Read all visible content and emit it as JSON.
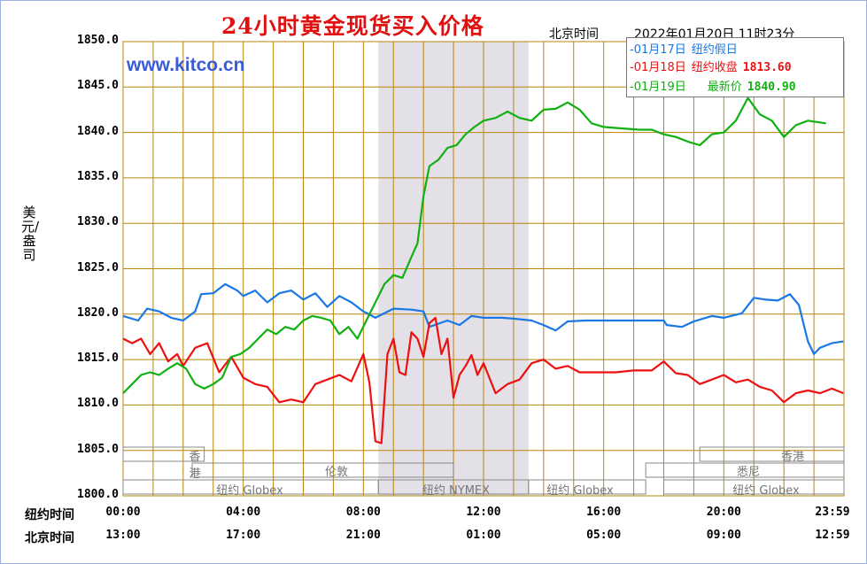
{
  "title": "24小时黄金现货买入价格",
  "header": {
    "beijing_time_label": "北京时间",
    "datetime": "2022年01月20日 11时23分"
  },
  "watermark": "www.kitco.cn",
  "y_axis_label": "美元/盎司",
  "x_axis": {
    "ny_label": "纽约时间",
    "bj_label": "北京时间",
    "ny_ticks": [
      "00:00",
      "04:00",
      "08:00",
      "12:00",
      "16:00",
      "20:00",
      "23:59"
    ],
    "bj_ticks": [
      "13:00",
      "17:00",
      "21:00",
      "01:00",
      "05:00",
      "09:00",
      "12:59"
    ]
  },
  "legend": {
    "items": [
      {
        "date": "-01月17日",
        "note": "纽约假日",
        "value": "",
        "color": "#1a78e6"
      },
      {
        "date": "-01月18日",
        "note": "纽约收盘",
        "value": "1813.60",
        "color": "#ee1010"
      },
      {
        "date": "-01月19日",
        "note": "最新价",
        "value": "1840.90",
        "color": "#10b010"
      }
    ]
  },
  "sessions": {
    "hongkong": [
      "香港",
      "香港"
    ],
    "london": "伦敦",
    "sydney": "悉尼",
    "ny_globex_1": "纽约 Globex",
    "ny_nymex": "纽约 NYMEX",
    "ny_globex_2": "纽约 Globex",
    "ny_globex_3": "纽约 Globex"
  },
  "colors": {
    "grid": "#b8860b",
    "shade": "#e4e0e8",
    "blue": "#1a78e6",
    "red": "#ee1010",
    "green": "#10b010"
  },
  "chart_data": {
    "type": "line",
    "ylim": [
      1800,
      1850
    ],
    "yticks": [
      "1850.0",
      "1845.0",
      "1840.0",
      "1835.0",
      "1830.0",
      "1825.0",
      "1820.0",
      "1815.0",
      "1810.0",
      "1805.0",
      "1800.0"
    ],
    "xlim_hours": [
      0,
      24
    ],
    "series": [
      {
        "name": "01月17日",
        "color": "#1a78e6",
        "x": [
          0,
          0.5,
          0.8,
          1.2,
          1.6,
          2.0,
          2.4,
          2.6,
          3.0,
          3.4,
          3.8,
          4.0,
          4.4,
          4.8,
          5.2,
          5.6,
          6.0,
          6.4,
          6.8,
          7.2,
          7.6,
          8.0,
          8.4,
          9.0,
          9.6,
          10.0,
          10.2,
          10.8,
          11.2,
          11.6,
          12.0,
          12.6,
          13.0,
          13.6,
          14.0,
          14.4,
          14.8,
          15.4,
          16.0,
          17.0,
          18.0,
          18.1,
          18.6,
          19.0,
          19.6,
          20.0,
          20.6,
          21.0,
          21.4,
          21.8,
          22.2,
          22.5,
          22.8,
          23.0,
          23.2,
          23.6,
          23.98
        ],
        "y": [
          1819.8,
          1819.3,
          1820.6,
          1820.3,
          1819.6,
          1819.3,
          1820.3,
          1822.2,
          1822.3,
          1823.3,
          1822.6,
          1822.0,
          1822.6,
          1821.3,
          1822.3,
          1822.6,
          1821.6,
          1822.3,
          1820.8,
          1822.0,
          1821.3,
          1820.3,
          1819.6,
          1820.6,
          1820.5,
          1820.3,
          1818.6,
          1819.3,
          1818.8,
          1819.8,
          1819.6,
          1819.6,
          1819.5,
          1819.3,
          1818.8,
          1818.2,
          1819.2,
          1819.3,
          1819.3,
          1819.3,
          1819.3,
          1818.8,
          1818.6,
          1819.2,
          1819.8,
          1819.6,
          1820.1,
          1821.8,
          1821.6,
          1821.5,
          1822.2,
          1821.0,
          1817.0,
          1815.6,
          1816.3,
          1816.8,
          1817.0
        ]
      },
      {
        "name": "01月18日",
        "color": "#ee1010",
        "x": [
          0,
          0.3,
          0.6,
          0.9,
          1.2,
          1.5,
          1.8,
          2.0,
          2.4,
          2.8,
          3.2,
          3.6,
          4.0,
          4.4,
          4.8,
          5.2,
          5.6,
          6.0,
          6.4,
          6.8,
          7.2,
          7.6,
          8.0,
          8.2,
          8.4,
          8.6,
          8.8,
          9.0,
          9.2,
          9.4,
          9.6,
          9.8,
          10.0,
          10.2,
          10.4,
          10.6,
          10.8,
          11.0,
          11.2,
          11.4,
          11.6,
          11.8,
          12.0,
          12.4,
          12.8,
          13.2,
          13.6,
          14.0,
          14.4,
          14.8,
          15.2,
          15.6,
          16.0,
          16.4,
          17.0,
          17.6,
          18.0,
          18.4,
          18.8,
          19.2,
          19.6,
          20.0,
          20.4,
          20.8,
          21.2,
          21.6,
          22.0,
          22.4,
          22.8,
          23.2,
          23.6,
          23.98
        ],
        "y": [
          1817.3,
          1816.8,
          1817.3,
          1815.6,
          1816.8,
          1814.8,
          1815.6,
          1814.3,
          1816.3,
          1816.8,
          1813.6,
          1815.3,
          1813.0,
          1812.3,
          1812.0,
          1810.3,
          1810.6,
          1810.3,
          1812.3,
          1812.8,
          1813.3,
          1812.6,
          1815.6,
          1812.5,
          1806.0,
          1805.8,
          1815.6,
          1817.3,
          1813.6,
          1813.3,
          1818.0,
          1817.3,
          1815.3,
          1819.0,
          1819.6,
          1815.6,
          1817.3,
          1810.8,
          1813.3,
          1814.3,
          1815.5,
          1813.3,
          1814.6,
          1811.3,
          1812.3,
          1812.8,
          1814.6,
          1815.0,
          1814.0,
          1814.3,
          1813.6,
          1813.6,
          1813.6,
          1813.6,
          1813.8,
          1813.8,
          1814.8,
          1813.5,
          1813.3,
          1812.3,
          1812.8,
          1813.3,
          1812.5,
          1812.8,
          1812.0,
          1811.6,
          1810.3,
          1811.3,
          1811.6,
          1811.3,
          1811.8,
          1811.3
        ]
      },
      {
        "name": "01月19日",
        "color": "#10b010",
        "x": [
          0,
          0.3,
          0.6,
          0.9,
          1.2,
          1.5,
          1.8,
          2.1,
          2.4,
          2.7,
          3.0,
          3.3,
          3.6,
          3.9,
          4.2,
          4.5,
          4.8,
          5.1,
          5.4,
          5.7,
          6.0,
          6.3,
          6.6,
          6.9,
          7.2,
          7.5,
          7.8,
          8.1,
          8.4,
          8.7,
          9.0,
          9.3,
          9.6,
          9.8,
          10.0,
          10.2,
          10.5,
          10.8,
          11.1,
          11.4,
          11.7,
          12.0,
          12.4,
          12.8,
          13.2,
          13.6,
          14.0,
          14.4,
          14.8,
          15.2,
          15.6,
          16.0,
          16.4,
          16.8,
          17.2,
          17.6,
          18.0,
          18.4,
          18.8,
          19.2,
          19.6,
          20.0,
          20.4,
          20.8,
          21.2,
          21.6,
          22.0,
          22.4,
          22.8,
          23.2,
          23.4
        ],
        "y": [
          1811.3,
          1812.3,
          1813.3,
          1813.6,
          1813.3,
          1814.0,
          1814.6,
          1814.0,
          1812.3,
          1811.8,
          1812.3,
          1813.0,
          1815.3,
          1815.6,
          1816.3,
          1817.3,
          1818.3,
          1817.8,
          1818.6,
          1818.3,
          1819.3,
          1819.8,
          1819.6,
          1819.3,
          1817.8,
          1818.6,
          1817.3,
          1819.3,
          1821.3,
          1823.3,
          1824.3,
          1824.0,
          1826.3,
          1827.8,
          1833.0,
          1836.3,
          1837.0,
          1838.3,
          1838.6,
          1839.8,
          1840.6,
          1841.3,
          1841.6,
          1842.3,
          1841.6,
          1841.3,
          1842.5,
          1842.6,
          1843.3,
          1842.5,
          1841.0,
          1840.6,
          1840.5,
          1840.4,
          1840.3,
          1840.3,
          1839.8,
          1839.5,
          1839.0,
          1838.6,
          1839.8,
          1840.0,
          1841.3,
          1843.8,
          1842.0,
          1841.3,
          1839.5,
          1840.8,
          1841.3,
          1841.1,
          1841.0
        ]
      }
    ]
  }
}
